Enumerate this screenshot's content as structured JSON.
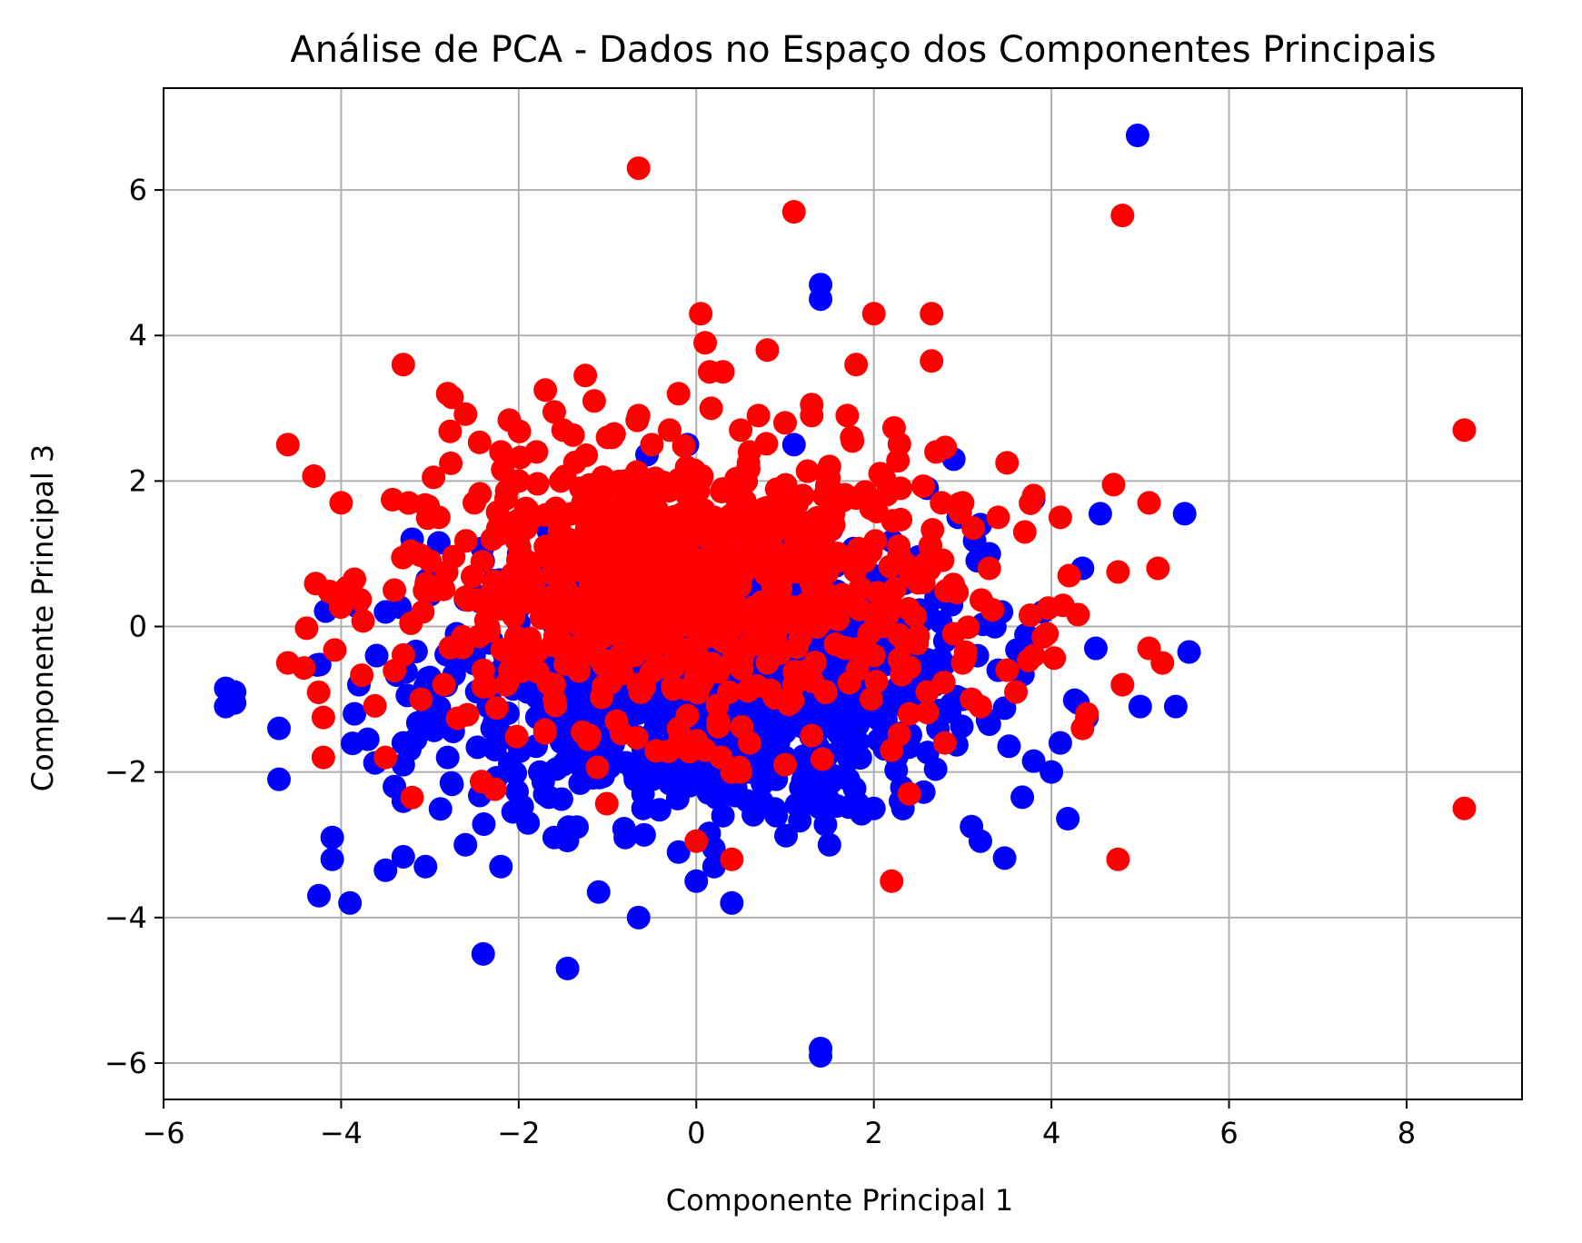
{
  "chart_data": {
    "type": "scatter",
    "title": "Análise de PCA - Dados no Espaço dos Componentes Principais",
    "xlabel": "Componente Principal 1",
    "ylabel": "Componente Principal 3",
    "xlim": [
      -6.0,
      9.3
    ],
    "ylim": [
      -6.5,
      7.4
    ],
    "xticks": [
      -6,
      -4,
      -2,
      0,
      2,
      4,
      6,
      8
    ],
    "yticks": [
      -6,
      -4,
      -2,
      0,
      2,
      4,
      6
    ],
    "xtick_labels": [
      "−6",
      "−4",
      "−2",
      "0",
      "2",
      "4",
      "6",
      "8"
    ],
    "ytick_labels": [
      "−6",
      "−4",
      "−2",
      "0",
      "2",
      "4",
      "6"
    ],
    "grid": true,
    "legend": "none",
    "series": [
      {
        "color": "#0000ff",
        "x": [
          4.97,
          1.4,
          1.4,
          1.4,
          1.4,
          -5.3,
          -5.2,
          -5.3,
          -5.2,
          -4.7,
          -4.7,
          -4.25,
          -4.1,
          -4.1,
          -3.9,
          -3.85,
          -3.8,
          -3.6,
          -3.5,
          -3.4,
          -3.3,
          -3.3,
          -3.05,
          -2.95,
          -2.6,
          -2.4,
          -2.2,
          -1.6,
          -1.45,
          -1.1,
          -0.8,
          -0.65,
          -0.6,
          -0.2,
          0.0,
          0.2,
          0.4,
          1.5,
          1.1,
          2.9,
          3.1,
          3.2,
          3.8,
          4.0,
          4.3,
          4.4,
          4.5,
          4.55,
          5.0,
          5.4,
          5.5,
          5.55,
          2.0,
          2.3,
          2.6,
          2.95,
          3.8,
          1.2,
          1.3,
          -3.2,
          -3.5,
          -2.9,
          -3.0,
          -2.4,
          -1.9,
          -1.5,
          -0.7,
          -0.1,
          0.9,
          1.7,
          2.0,
          2.5,
          3.3,
          3.6,
          4.1,
          4.35,
          -1.7,
          -1.3,
          -0.5,
          -0.2,
          0.1,
          0.5,
          0.8,
          1.2,
          1.6,
          -2.5,
          -2.0,
          -1.0,
          0.3,
          0.7,
          1.0,
          1.9,
          -3.7,
          -3.1,
          -2.7,
          -2.3,
          -1.9,
          -1.4,
          -0.9,
          0.6,
          1.3,
          2.2,
          2.8,
          3.4,
          3.9,
          -1.2,
          -0.4,
          0.2,
          1.0,
          1.5,
          2.4,
          3.0,
          -2.2,
          -1.6,
          -0.8,
          0.0,
          0.4,
          0.8,
          1.8,
          -0.3,
          0.5,
          1.1,
          -1.1,
          0.9,
          2.1,
          2.7,
          3.2,
          -3.3,
          -2.8,
          -0.6,
          0.3
        ],
        "y": [
          6.75,
          4.7,
          4.5,
          -5.8,
          -5.9,
          -0.85,
          -0.9,
          -1.1,
          -1.05,
          -1.4,
          -2.1,
          -3.7,
          -2.9,
          -3.2,
          -3.8,
          -1.2,
          -0.8,
          -0.4,
          -3.35,
          -2.2,
          -1.9,
          -1.6,
          -3.3,
          -1.3,
          -3.0,
          -4.5,
          -3.3,
          -2.9,
          -4.7,
          -3.65,
          -2.9,
          -4.0,
          -2.3,
          -3.1,
          -3.5,
          -3.3,
          -3.8,
          -3.0,
          2.5,
          2.3,
          -2.75,
          -2.95,
          -1.85,
          -2.0,
          -1.05,
          -1.25,
          -0.3,
          1.55,
          -1.1,
          -1.1,
          1.55,
          -0.35,
          -2.5,
          -2.4,
          1.9,
          1.5,
          1.75,
          -1.2,
          -2.4,
          1.2,
          0.2,
          1.15,
          -0.7,
          0.9,
          0.4,
          -1.9,
          -2.0,
          2.5,
          -2.6,
          -1.6,
          0.7,
          -0.5,
          1.0,
          -0.6,
          -1.6,
          0.8,
          -1.2,
          -1.7,
          0.6,
          -0.9,
          -2.2,
          -1.5,
          -0.3,
          0.3,
          -1.0,
          -0.2,
          1.0,
          -0.5,
          -1.8,
          -0.4,
          -1.3,
          -0.8,
          -1.55,
          -1.0,
          -0.1,
          -1.4,
          -0.9,
          -0.4,
          -1.2,
          -2.0,
          -0.7,
          -1.5,
          -0.2,
          -0.6,
          0.2,
          0.5,
          -0.3,
          -1.0,
          -1.8,
          -1.1,
          -0.9,
          -1.0,
          -0.6,
          1.1,
          0.3,
          -1.4,
          -2.3,
          -1.7,
          0.0,
          -0.8,
          -1.2,
          0.5,
          -1.4,
          -2.1,
          -0.5,
          0.4,
          1.4,
          -2.4,
          -1.8,
          -2.5,
          -2.6
        ]
      },
      {
        "color": "#ff0000",
        "x": [
          8.65,
          8.65,
          -0.65,
          1.1,
          4.8,
          4.75,
          -4.6,
          -4.6,
          -4.0,
          -3.85,
          -3.3,
          -2.8,
          -2.75,
          -1.7,
          -1.6,
          -1.25,
          -1.15,
          -0.95,
          -0.65,
          -0.3,
          -0.2,
          0.05,
          0.1,
          0.15,
          0.3,
          0.8,
          1.3,
          1.3,
          1.7,
          1.8,
          2.0,
          2.65,
          2.65,
          1.75,
          3.5,
          3.8,
          4.7,
          4.75,
          5.1,
          5.2,
          5.1,
          5.25,
          4.4,
          4.35,
          4.8,
          3.95,
          2.2,
          2.4,
          0.4,
          0.0,
          -4.2,
          -4.2,
          -3.2,
          -3.5,
          -2.9,
          -2.5,
          -2.2,
          -2.0,
          -1.8,
          -1.5,
          -1.0,
          -0.5,
          0.5,
          0.7,
          1.0,
          1.5,
          1.9,
          2.3,
          2.7,
          3.0,
          3.4,
          3.7,
          4.1,
          4.2,
          -3.0,
          -2.6,
          -1.9,
          -1.3,
          -0.8,
          -0.1,
          0.6,
          1.2,
          1.6,
          2.1,
          2.5,
          2.9,
          3.3,
          3.6,
          -2.3,
          -1.7,
          -1.1,
          -0.4,
          0.2,
          0.9,
          1.4,
          2.0,
          2.6,
          3.1,
          3.5,
          -2.1,
          -1.4,
          -0.7,
          0.3,
          0.8,
          1.1,
          1.7,
          2.4,
          3.2,
          -1.6,
          -0.9,
          0.1,
          0.5,
          1.3,
          2.2,
          2.8,
          -3.4,
          -2.4,
          -0.2,
          0.6,
          1.0,
          -1.2,
          0.4,
          3.8,
          3.0,
          -3.1
        ],
        "y": [
          2.7,
          -2.5,
          6.3,
          5.7,
          5.65,
          -3.2,
          2.5,
          -0.5,
          1.7,
          0.65,
          3.6,
          3.2,
          3.15,
          3.25,
          2.95,
          3.45,
          3.1,
          2.6,
          2.9,
          2.7,
          3.2,
          4.3,
          3.9,
          3.5,
          3.5,
          3.8,
          3.05,
          2.9,
          2.9,
          3.6,
          4.3,
          4.3,
          3.65,
          2.6,
          2.25,
          1.8,
          1.95,
          0.75,
          1.7,
          0.8,
          -0.3,
          -0.5,
          -1.2,
          -1.4,
          -0.8,
          -0.1,
          -3.5,
          -2.3,
          -3.2,
          -2.95,
          -1.8,
          -1.25,
          -2.35,
          -1.8,
          1.5,
          1.7,
          2.4,
          2.0,
          2.4,
          2.7,
          2.6,
          2.5,
          2.7,
          2.9,
          2.8,
          2.2,
          0.9,
          1.9,
          2.4,
          1.7,
          1.5,
          1.3,
          1.5,
          0.7,
          0.9,
          0.4,
          1.6,
          1.9,
          2.0,
          1.8,
          2.4,
          1.8,
          0.9,
          0.0,
          0.6,
          -0.1,
          0.8,
          -0.9,
          1.2,
          1.1,
          0.5,
          0.2,
          1.5,
          1.6,
          0.2,
          -0.4,
          -0.9,
          -1.0,
          -0.6,
          -0.6,
          -0.3,
          -0.4,
          -0.2,
          -0.5,
          -0.8,
          -0.3,
          -1.2,
          -1.1,
          -0.8,
          -1.3,
          -1.7,
          -2.0,
          -1.5,
          -1.7,
          -1.6,
          0.5,
          -0.6,
          -1.4,
          -1.6,
          -1.9,
          -1.5,
          -2.0,
          -0.4,
          -0.5,
          -1.0
        ]
      }
    ]
  }
}
